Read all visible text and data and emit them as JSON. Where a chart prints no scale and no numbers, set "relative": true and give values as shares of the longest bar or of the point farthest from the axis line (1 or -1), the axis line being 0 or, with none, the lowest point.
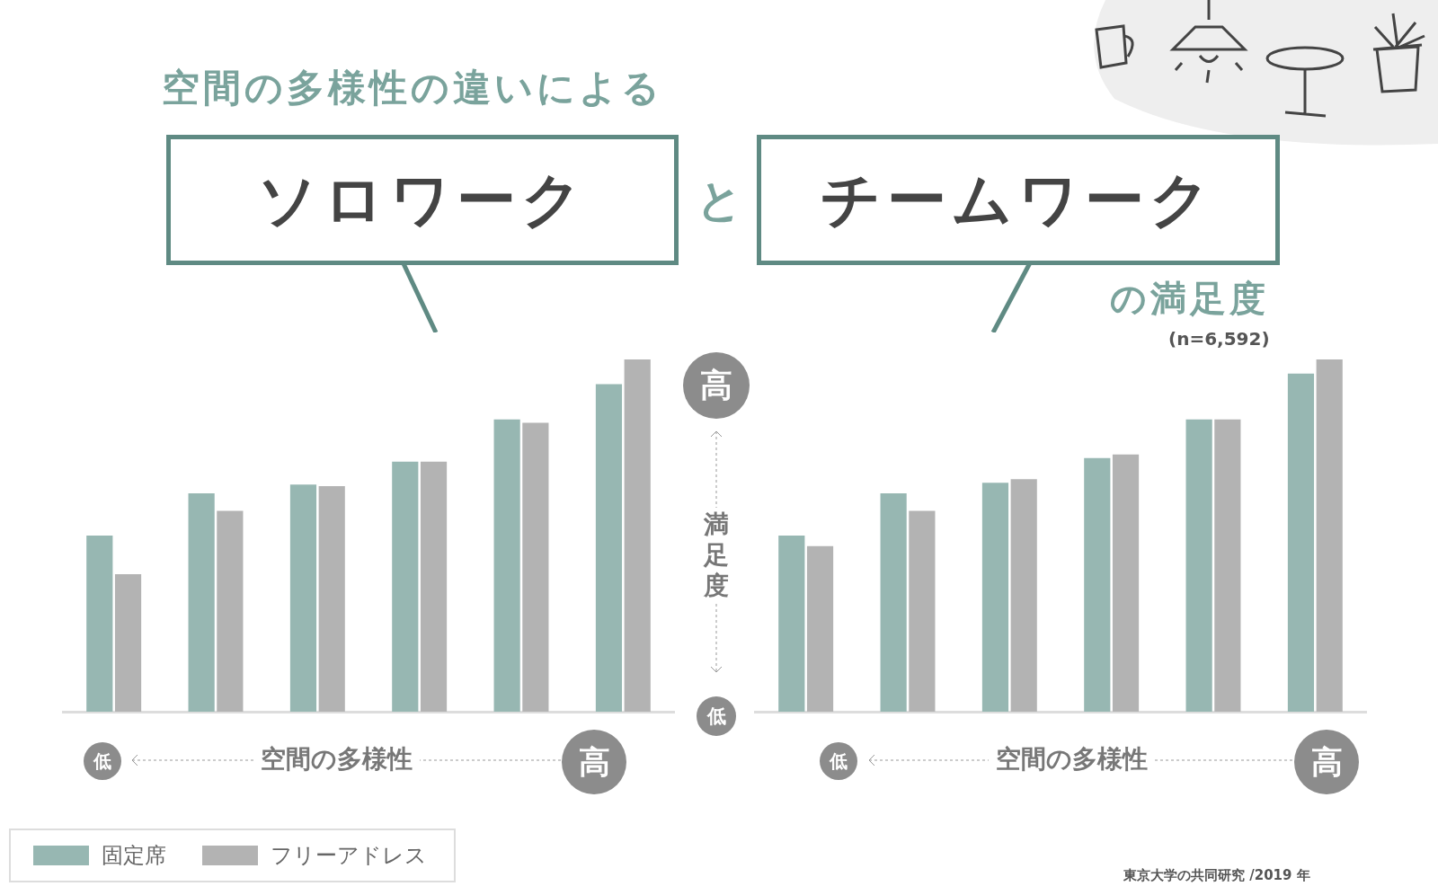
{
  "chart_data": [
    {
      "type": "bar",
      "title": "ソロワーク",
      "subtitle": "空間の多様性の違いによる",
      "xlabel": "空間の多様性",
      "relative": true,
      "legend": "bottom",
      "categories": [
        null,
        null,
        null,
        null,
        null,
        null
      ],
      "series": [
        {
          "name": "固定席",
          "color": "#97b7b2",
          "values": [
            0.5,
            0.62,
            0.645,
            0.71,
            0.83,
            0.93
          ]
        },
        {
          "name": "フリーアドレス",
          "color": "#b3b3b3",
          "values": [
            0.39,
            0.57,
            0.64,
            0.71,
            0.82,
            1
          ]
        }
      ],
      "annotations": [
        "と",
        "低",
        "高"
      ]
    },
    {
      "type": "bar",
      "title": "チームワーク",
      "subtitle": "の満足度",
      "xlabel": "空間の多様性",
      "ylabel": "満足度",
      "relative": true,
      "categories": [
        null,
        null,
        null,
        null,
        null,
        null
      ],
      "series": [
        {
          "color": "#97b7b2",
          "values": [
            0.5,
            0.62,
            0.65,
            0.72,
            0.83,
            0.96
          ]
        },
        {
          "color": "#b3b3b3",
          "values": [
            0.47,
            0.57,
            0.66,
            0.73,
            0.83,
            1
          ]
        }
      ],
      "annotations": [
        "(n=6,592)",
        "高",
        "低",
        "低",
        "高",
        "東京大学の共同研究 /2019 年"
      ]
    }
  ]
}
